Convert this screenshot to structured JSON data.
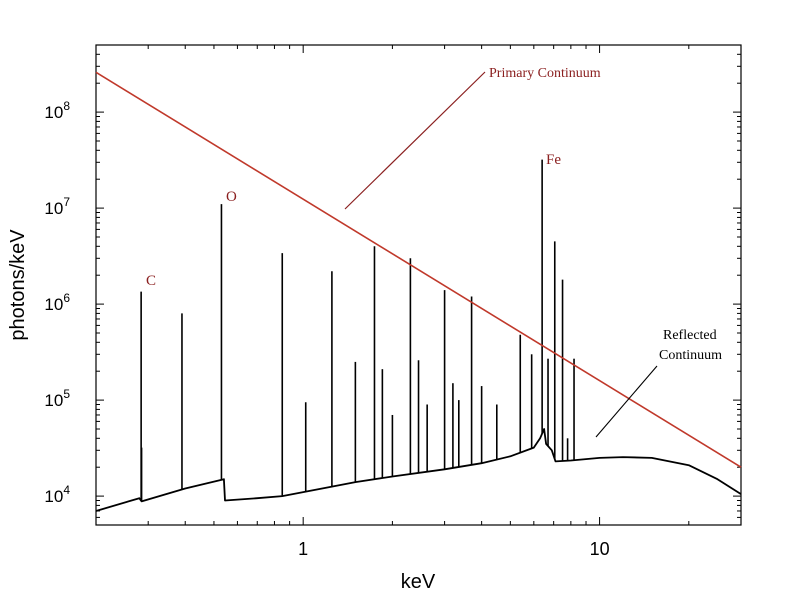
{
  "chart_data": {
    "type": "line",
    "title": "",
    "xlabel": "keV",
    "ylabel": "photons/keV",
    "x_scale": "log",
    "y_scale": "log",
    "xlim": [
      0.2,
      30
    ],
    "ylim": [
      5000,
      500000000
    ],
    "x_ticks": [
      {
        "value": 1,
        "label": "1"
      },
      {
        "value": 10,
        "label": "10"
      }
    ],
    "y_ticks": [
      {
        "value": 10000,
        "base": "10",
        "exp": "4"
      },
      {
        "value": 100000,
        "base": "10",
        "exp": "5"
      },
      {
        "value": 1000000,
        "base": "10",
        "exp": "6"
      },
      {
        "value": 10000000,
        "base": "10",
        "exp": "7"
      },
      {
        "value": 100000000,
        "base": "10",
        "exp": "8"
      }
    ],
    "grid": false,
    "series": [
      {
        "name": "Primary Continuum",
        "color": "#c0392b",
        "x": [
          0.2,
          30
        ],
        "y": [
          260000000,
          20000
        ]
      },
      {
        "name": "Reflected Continuum",
        "color": "#000000",
        "x": [
          0.2,
          0.28,
          0.285,
          0.4,
          0.54,
          0.545,
          0.7,
          0.85,
          1.0,
          1.5,
          2.0,
          3.0,
          4.0,
          5.0,
          6.0,
          6.3,
          6.5,
          6.6,
          6.9,
          7.1,
          8.0,
          10.0,
          12.0,
          15.0,
          20.0,
          25.0,
          30.0
        ],
        "y": [
          7000,
          9500,
          8800,
          12000,
          15000,
          9000,
          9500,
          10000,
          11000,
          14000,
          16000,
          19000,
          22000,
          26000,
          32000,
          40000,
          50000,
          35000,
          30000,
          23000,
          23500,
          25000,
          25500,
          25000,
          21000,
          15000,
          10500
        ]
      }
    ],
    "lines": [
      {
        "x": 0.284,
        "y": 1350000
      },
      {
        "x": 0.285,
        "y": 32000
      },
      {
        "x": 0.39,
        "y": 800000
      },
      {
        "x": 0.53,
        "y": 11000000
      },
      {
        "x": 0.85,
        "y": 3400000
      },
      {
        "x": 1.02,
        "y": 95000
      },
      {
        "x": 1.25,
        "y": 2200000
      },
      {
        "x": 1.5,
        "y": 250000
      },
      {
        "x": 1.74,
        "y": 4000000
      },
      {
        "x": 1.85,
        "y": 210000
      },
      {
        "x": 2.0,
        "y": 70000
      },
      {
        "x": 2.3,
        "y": 3000000
      },
      {
        "x": 2.45,
        "y": 260000
      },
      {
        "x": 2.62,
        "y": 90000
      },
      {
        "x": 3.0,
        "y": 1400000
      },
      {
        "x": 3.2,
        "y": 150000
      },
      {
        "x": 3.35,
        "y": 100000
      },
      {
        "x": 3.7,
        "y": 1200000
      },
      {
        "x": 4.0,
        "y": 140000
      },
      {
        "x": 4.5,
        "y": 90000
      },
      {
        "x": 5.4,
        "y": 480000
      },
      {
        "x": 5.9,
        "y": 300000
      },
      {
        "x": 6.4,
        "y": 32000000
      },
      {
        "x": 6.7,
        "y": 270000
      },
      {
        "x": 7.06,
        "y": 4500000
      },
      {
        "x": 7.5,
        "y": 1800000
      },
      {
        "x": 7.8,
        "y": 40000
      },
      {
        "x": 8.2,
        "y": 270000
      }
    ],
    "annotations": [
      {
        "text": "C",
        "x": 0.3,
        "y": 1500000,
        "color": "#8b2020"
      },
      {
        "text": "O",
        "x": 0.56,
        "y": 11000000,
        "color": "#8b2020"
      },
      {
        "text": "Fe",
        "x": 6.6,
        "y": 32000000,
        "color": "#8b2020"
      },
      {
        "text": "Primary Continuum",
        "color": "#8b2020"
      },
      {
        "text": "Reflected",
        "color": "#000000"
      },
      {
        "text": "Continuum",
        "color": "#000000"
      }
    ],
    "legend": "none"
  }
}
